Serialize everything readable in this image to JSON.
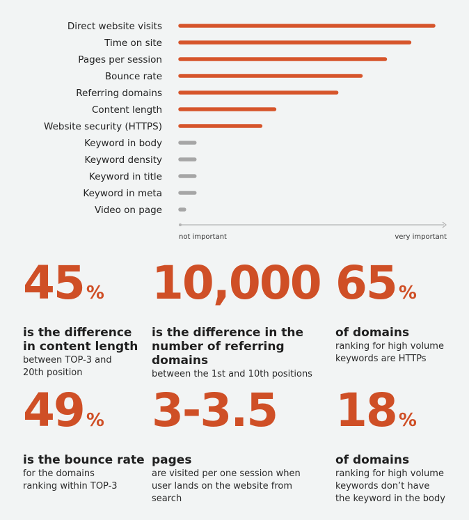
{
  "chart_data": {
    "type": "bar",
    "orientation": "horizontal",
    "categories": [
      "Direct website visits",
      "Time on site",
      "Pages per session",
      "Bounce rate",
      "Referring domains",
      "Content length",
      "Website security (HTTPS)",
      "Keyword in body",
      "Keyword density",
      "Keyword in title",
      "Keyword in meta",
      "Video on page"
    ],
    "values": [
      100,
      90.5,
      80.9,
      71.3,
      61.7,
      37.2,
      31.7,
      5.7,
      5.7,
      5.7,
      5.7,
      1.6
    ],
    "xlim": [
      0,
      100
    ],
    "x_min_label": "not important",
    "x_max_label": "very important",
    "colors": {
      "important": "#d6552b",
      "minor": "#a6a6a6",
      "axis": "#b3b3b3"
    },
    "minor_threshold": 10
  },
  "stats": [
    {
      "value": "45",
      "unit": "%",
      "headline": "is the difference in content length",
      "detail": "between TOP-3 and 20th position"
    },
    {
      "value": "10,000",
      "unit": "",
      "headline": "is the difference in the number of referring domains",
      "detail": "between the 1st and 10th positions"
    },
    {
      "value": "65",
      "unit": "%",
      "headline": "of domains",
      "detail": "ranking for high volume keywords are HTTPs"
    },
    {
      "value": "49",
      "unit": "%",
      "headline": "is the bounce rate",
      "detail": "for the domains ranking within TOP-3"
    },
    {
      "value": "3-3.5",
      "unit": "",
      "headline": "pages",
      "detail": "are visited per one session when user lands on the website from search"
    },
    {
      "value": "18",
      "unit": "%",
      "headline": "of domains",
      "detail": "ranking for high volume keywords don’t have the keyword in the body"
    }
  ]
}
